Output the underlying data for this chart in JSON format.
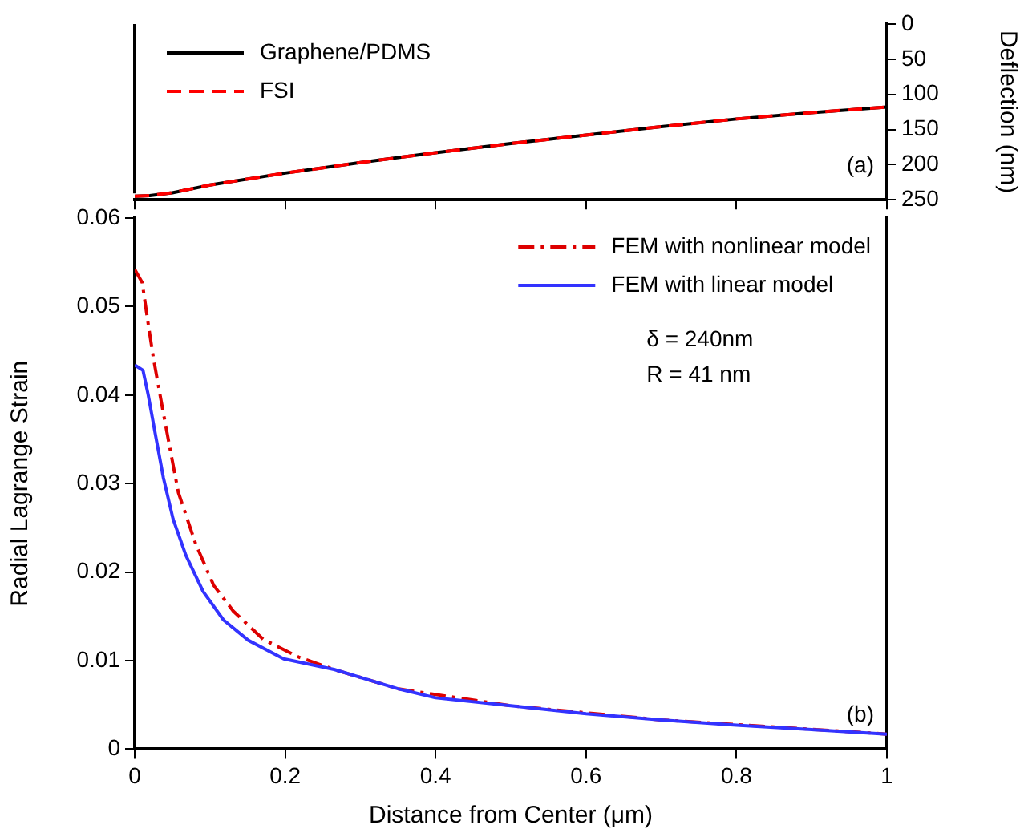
{
  "chart_data": [
    {
      "type": "line",
      "x": [
        0,
        0.02,
        0.05,
        0.1,
        0.2,
        0.3,
        0.4,
        0.5,
        0.6,
        0.7,
        0.8,
        0.9,
        1.0
      ],
      "series": [
        {
          "name": "Graphene/PDMS",
          "color": "#000000",
          "line_style": "solid",
          "values": [
            245,
            244,
            240,
            229,
            212,
            197,
            183,
            170,
            158,
            146,
            135,
            126,
            118
          ]
        },
        {
          "name": "FSI",
          "color": "#ff0000",
          "line_style": "dashed",
          "values": [
            245,
            244,
            240,
            229,
            212,
            197,
            183,
            170,
            158,
            146,
            135,
            126,
            118
          ]
        }
      ],
      "xlim": [
        0,
        1
      ],
      "xticks": [
        0,
        0.2,
        0.4,
        0.6,
        0.8,
        1
      ],
      "ylim": [
        250,
        0
      ],
      "yticks": [
        0,
        50,
        100,
        150,
        200,
        250
      ],
      "ylabel": "Deflection (nm)",
      "tick_labels": "y",
      "legend": "top left",
      "annotations": [
        "(a)"
      ]
    },
    {
      "type": "line",
      "series": [
        {
          "name": "FEM with nonlinear model",
          "color": "#dd0000",
          "line_style": "dashdot",
          "x": [
            0,
            0.01,
            0.018,
            0.025,
            0.035,
            0.045,
            0.058,
            0.081,
            0.105,
            0.131,
            0.171,
            0.218,
            0.265,
            0.351,
            0.5,
            0.7,
            1.0
          ],
          "values": [
            0.0542,
            0.0527,
            0.048,
            0.0441,
            0.0394,
            0.0348,
            0.029,
            0.0232,
            0.0185,
            0.0156,
            0.0124,
            0.0104,
            0.009,
            0.0068,
            0.0049,
            0.0033,
            0.0017
          ]
        },
        {
          "name": "FEM with linear model",
          "color": "#3333ff",
          "line_style": "solid",
          "x": [
            0,
            0.011,
            0.018,
            0.028,
            0.038,
            0.051,
            0.068,
            0.091,
            0.118,
            0.151,
            0.198,
            0.265,
            0.351,
            0.4,
            0.5,
            0.6,
            0.7,
            0.8,
            0.9,
            1.0
          ],
          "values": [
            0.0434,
            0.0428,
            0.04,
            0.0353,
            0.0307,
            0.026,
            0.0219,
            0.0178,
            0.0146,
            0.0123,
            0.0102,
            0.009,
            0.0068,
            0.0058,
            0.0049,
            0.004,
            0.0033,
            0.0027,
            0.0022,
            0.0017
          ]
        }
      ],
      "xlim": [
        0,
        1
      ],
      "xticks": [
        0,
        0.2,
        0.4,
        0.6,
        0.8,
        1
      ],
      "xlabel": "Distance from Center (μm)",
      "ylim": [
        0,
        0.06
      ],
      "yticks": [
        0,
        0.01,
        0.02,
        0.03,
        0.04,
        0.05,
        0.06
      ],
      "ylabel": "Radial Lagrange Strain",
      "legend": "top right",
      "annotations": [
        "δ = 240nm",
        "R = 41 nm",
        "(b)"
      ]
    }
  ]
}
